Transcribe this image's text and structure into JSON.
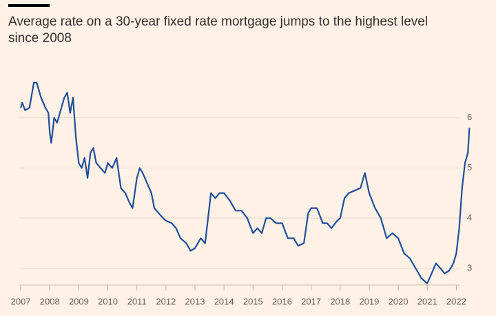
{
  "chart_data": {
    "type": "line",
    "title": "Average rate on a 30-year fixed rate mortgage jumps to the highest level since 2008",
    "color": "#1f4e9a",
    "grid": true,
    "x": [
      2007.0,
      2007.05,
      2007.15,
      2007.3,
      2007.45,
      2007.55,
      2007.7,
      2007.85,
      2007.95,
      2008.0,
      2008.05,
      2008.15,
      2008.25,
      2008.35,
      2008.5,
      2008.6,
      2008.7,
      2008.8,
      2008.9,
      2009.0,
      2009.1,
      2009.2,
      2009.3,
      2009.4,
      2009.5,
      2009.6,
      2009.75,
      2009.9,
      2010.0,
      2010.15,
      2010.3,
      2010.45,
      2010.6,
      2010.75,
      2010.85,
      2011.0,
      2011.1,
      2011.2,
      2011.35,
      2011.5,
      2011.6,
      2011.75,
      2011.9,
      2012.0,
      2012.2,
      2012.35,
      2012.5,
      2012.7,
      2012.85,
      2013.0,
      2013.2,
      2013.35,
      2013.45,
      2013.55,
      2013.7,
      2013.85,
      2014.0,
      2014.2,
      2014.4,
      2014.6,
      2014.8,
      2015.0,
      2015.15,
      2015.3,
      2015.45,
      2015.6,
      2015.8,
      2016.0,
      2016.2,
      2016.4,
      2016.55,
      2016.75,
      2016.9,
      2017.0,
      2017.2,
      2017.4,
      2017.55,
      2017.7,
      2017.9,
      2018.0,
      2018.15,
      2018.3,
      2018.5,
      2018.7,
      2018.85,
      2019.0,
      2019.2,
      2019.4,
      2019.6,
      2019.8,
      2020.0,
      2020.2,
      2020.4,
      2020.6,
      2020.8,
      2021.0,
      2021.15,
      2021.3,
      2021.45,
      2021.6,
      2021.75,
      2021.9,
      2022.0,
      2022.1,
      2022.2,
      2022.3,
      2022.4,
      2022.45
    ],
    "values": [
      6.2,
      6.3,
      6.15,
      6.2,
      6.7,
      6.7,
      6.4,
      6.2,
      6.1,
      5.7,
      5.5,
      6.0,
      5.9,
      6.1,
      6.4,
      6.5,
      6.1,
      6.4,
      5.6,
      5.1,
      5.0,
      5.2,
      4.8,
      5.3,
      5.4,
      5.1,
      5.0,
      4.9,
      5.1,
      5.0,
      5.2,
      4.6,
      4.5,
      4.3,
      4.2,
      4.8,
      5.0,
      4.9,
      4.7,
      4.5,
      4.2,
      4.1,
      4.0,
      3.95,
      3.9,
      3.8,
      3.6,
      3.5,
      3.35,
      3.4,
      3.6,
      3.5,
      4.0,
      4.5,
      4.4,
      4.5,
      4.5,
      4.35,
      4.15,
      4.15,
      4.0,
      3.7,
      3.8,
      3.7,
      4.0,
      4.0,
      3.9,
      3.9,
      3.6,
      3.6,
      3.45,
      3.5,
      4.1,
      4.2,
      4.2,
      3.9,
      3.9,
      3.8,
      3.95,
      4.0,
      4.4,
      4.5,
      4.55,
      4.6,
      4.9,
      4.5,
      4.2,
      4.0,
      3.6,
      3.7,
      3.6,
      3.3,
      3.2,
      3.0,
      2.8,
      2.7,
      2.9,
      3.1,
      3.0,
      2.9,
      2.95,
      3.1,
      3.3,
      3.8,
      4.6,
      5.1,
      5.3,
      5.8
    ],
    "xlim": [
      2006.95,
      2022.75
    ],
    "xticks": [
      2007,
      2008,
      2009,
      2010,
      2011,
      2012,
      2013,
      2014,
      2015,
      2016,
      2017,
      2018,
      2019,
      2020,
      2021,
      2022
    ],
    "ylim": [
      2.6,
      7
    ],
    "yticks": [
      3,
      4,
      5,
      6
    ]
  }
}
